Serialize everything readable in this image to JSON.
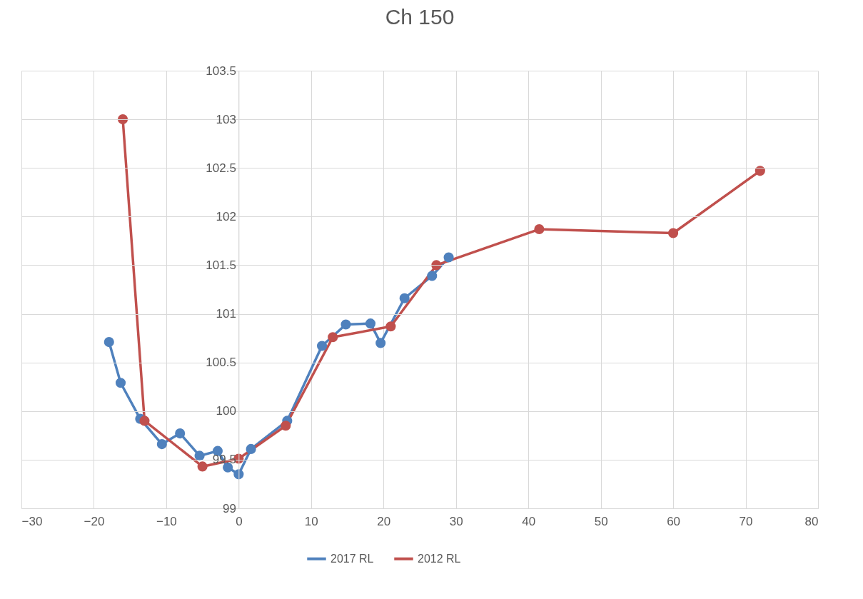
{
  "chart_data": {
    "type": "line",
    "title": "Ch 150",
    "xlim": [
      -30,
      80
    ],
    "xticks": [
      -30,
      -20,
      -10,
      0,
      10,
      20,
      30,
      40,
      50,
      60,
      70,
      80
    ],
    "ylim": [
      99,
      103.5
    ],
    "yticks": [
      99,
      99.5,
      100,
      100.5,
      101,
      101.5,
      102,
      102.5,
      103,
      103.5
    ],
    "grid": true,
    "legend": "bottom",
    "marker": "circle",
    "line_style": "solid",
    "series": [
      {
        "name": "2017 RL",
        "color": "#4f81bd",
        "x": [
          -17.9,
          -16.3,
          -13.6,
          -10.6,
          -8.1,
          -5.4,
          -2.9,
          -1.5,
          0,
          1.7,
          6.7,
          11.5,
          14.8,
          18.2,
          19.6,
          22.9,
          26.7,
          29
        ],
        "values": [
          100.71,
          100.29,
          99.92,
          99.66,
          99.77,
          99.54,
          99.59,
          99.42,
          99.35,
          99.61,
          99.9,
          100.67,
          100.89,
          100.9,
          100.7,
          101.16,
          101.39,
          101.58
        ]
      },
      {
        "name": "2012 RL",
        "color": "#c0504d",
        "x": [
          -16,
          -13,
          -5,
          0,
          6.5,
          13,
          21,
          27.3,
          41.5,
          60,
          72
        ],
        "values": [
          103,
          99.9,
          99.43,
          99.51,
          99.85,
          100.76,
          100.87,
          101.5,
          101.87,
          101.83,
          102.47
        ]
      }
    ]
  }
}
